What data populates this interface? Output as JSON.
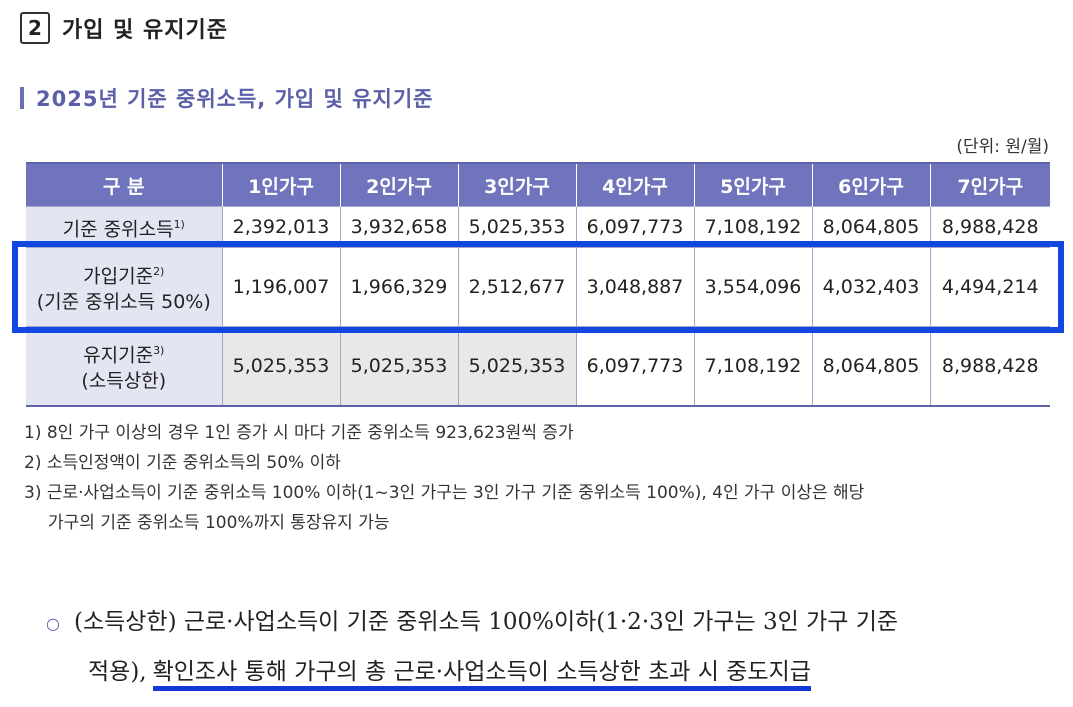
{
  "section": {
    "number": "2",
    "title": "가입 및 유지기준"
  },
  "table_title": "2025년 기준 중위소득, 가입 및 유지기준",
  "unit": "(단위: 원/월)",
  "headers": [
    "구 분",
    "1인가구",
    "2인가구",
    "3인가구",
    "4인가구",
    "5인가구",
    "6인가구",
    "7인가구"
  ],
  "rows": [
    {
      "label1": "기준 중위소득",
      "sup": "1)",
      "label2": "",
      "values": [
        "2,392,013",
        "3,932,658",
        "5,025,353",
        "6,097,773",
        "7,108,192",
        "8,064,805",
        "8,988,428"
      ]
    },
    {
      "label1": "가입기준",
      "sup": "2)",
      "label2": "(기준 중위소득 50%)",
      "values": [
        "1,196,007",
        "1,966,329",
        "2,512,677",
        "3,048,887",
        "3,554,096",
        "4,032,403",
        "4,494,214"
      ]
    },
    {
      "label1": "유지기준",
      "sup": "3)",
      "label2": "(소득상한)",
      "values": [
        "5,025,353",
        "5,025,353",
        "5,025,353",
        "6,097,773",
        "7,108,192",
        "8,064,805",
        "8,988,428"
      ]
    }
  ],
  "notes": [
    "1) 8인 가구 이상의 경우 1인 증가 시 마다 기준 중위소득 923,623원씩 증가",
    "2) 소득인정액이 기준 중위소득의 50% 이하",
    "3) 근로·사업소득이 기준 중위소득 100% 이하(1~3인 가구는 3인 가구 기준 중위소득 100%), 4인 가구 이상은 해당",
    "가구의 기준 중위소득 100%까지 통장유지 가능"
  ],
  "bullet": {
    "line1": "(소득상한) 근로·사업소득이 기준 중위소득 100%이하(1·2·3인 가구는 3인 가구 기준",
    "line2_plain": "적용),",
    "line2_underlined": "확인조사 통해 가구의 총 근로·사업소득이 소득상한 초과 시 중도지급"
  },
  "colors": {
    "header_bg": "#6f74bd",
    "accent": "#5a5fa8",
    "highlight": "#1248e0"
  }
}
